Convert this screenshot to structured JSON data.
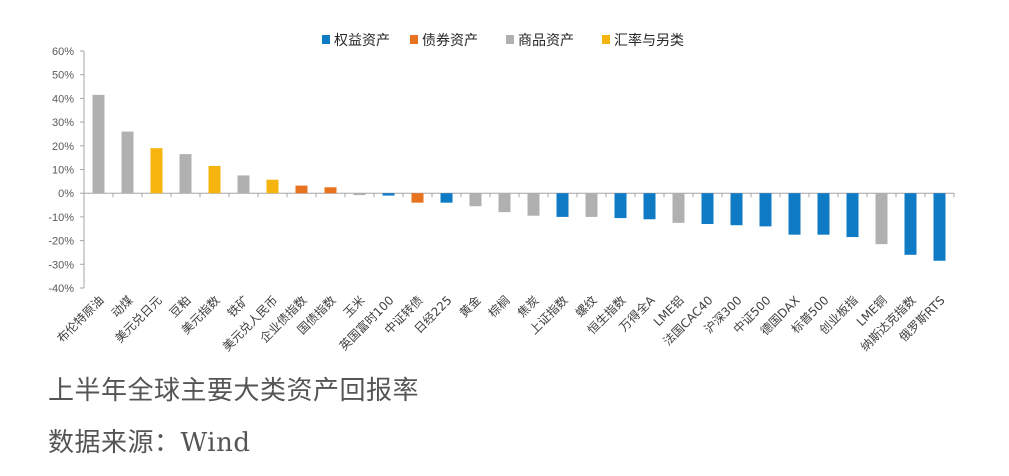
{
  "chart_data": {
    "type": "bar",
    "title": "上半年全球主要大类资产回报率",
    "source": "数据来源：Wind",
    "ylim": [
      -0.4,
      0.6
    ],
    "ytick_values": [
      0.6,
      0.5,
      0.4,
      0.3,
      0.2,
      0.1,
      0,
      -0.1,
      -0.2,
      -0.3,
      -0.4
    ],
    "ytick_labels": [
      "60%",
      "50%",
      "40%",
      "30%",
      "20%",
      "10%",
      "0%",
      "-10%",
      "-20%",
      "-30%",
      "-40%"
    ],
    "legend": [
      {
        "name": "权益资产",
        "color": "#0f7bc4"
      },
      {
        "name": "债券资产",
        "color": "#e8731e"
      },
      {
        "name": "商品资产",
        "color": "#b0b0b0"
      },
      {
        "name": "汇率与另类",
        "color": "#f6b40f"
      }
    ],
    "categories": [
      "布伦特原油",
      "动煤",
      "美元兑日元",
      "豆粕",
      "美元指数",
      "铁矿",
      "美元兑人民币",
      "企业债指数",
      "国债指数",
      "玉米",
      "英国富时100",
      "中证转债",
      "日经225",
      "黄金",
      "棕榈",
      "焦炭",
      "上证指数",
      "螺纹",
      "恒生指数",
      "万得全A",
      "LME铝",
      "法国CAC40",
      "沪深300",
      "中证500",
      "德国DAX",
      "标普500",
      "创业板指",
      "LME铜",
      "纳斯达克指数",
      "俄罗斯RTS"
    ],
    "values": [
      0.415,
      0.26,
      0.19,
      0.165,
      0.115,
      0.075,
      0.057,
      0.032,
      0.025,
      -0.008,
      -0.01,
      -0.04,
      -0.04,
      -0.055,
      -0.08,
      -0.095,
      -0.1,
      -0.1,
      -0.105,
      -0.11,
      -0.125,
      -0.13,
      -0.135,
      -0.14,
      -0.175,
      -0.175,
      -0.185,
      -0.215,
      -0.26,
      -0.285
    ],
    "groups": [
      "商品资产",
      "商品资产",
      "汇率与另类",
      "商品资产",
      "汇率与另类",
      "商品资产",
      "汇率与另类",
      "债券资产",
      "债券资产",
      "商品资产",
      "权益资产",
      "债券资产",
      "权益资产",
      "商品资产",
      "商品资产",
      "商品资产",
      "权益资产",
      "商品资产",
      "权益资产",
      "权益资产",
      "商品资产",
      "权益资产",
      "权益资产",
      "权益资产",
      "权益资产",
      "权益资产",
      "权益资产",
      "商品资产",
      "权益资产",
      "权益资产"
    ]
  }
}
